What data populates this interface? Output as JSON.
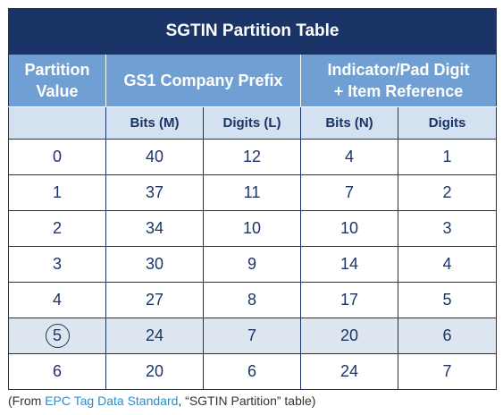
{
  "table": {
    "title": "SGTIN Partition Table",
    "group_headers": {
      "partition_line1": "Partition",
      "partition_line2": "Value",
      "company_prefix": "GS1 Company Prefix",
      "item_line1": "Indicator/Pad Digit",
      "item_line2": "+ Item Reference"
    },
    "sub_headers": [
      "",
      "Bits (M)",
      "Digits (L)",
      "Bits (N)",
      "Digits"
    ],
    "rows": [
      {
        "partition": "0",
        "bits_m": "40",
        "digits_l": "12",
        "bits_n": "4",
        "digits": "1"
      },
      {
        "partition": "1",
        "bits_m": "37",
        "digits_l": "11",
        "bits_n": "7",
        "digits": "2"
      },
      {
        "partition": "2",
        "bits_m": "34",
        "digits_l": "10",
        "bits_n": "10",
        "digits": "3"
      },
      {
        "partition": "3",
        "bits_m": "30",
        "digits_l": "9",
        "bits_n": "14",
        "digits": "4"
      },
      {
        "partition": "4",
        "bits_m": "27",
        "digits_l": "8",
        "bits_n": "17",
        "digits": "5"
      },
      {
        "partition": "5",
        "bits_m": "24",
        "digits_l": "7",
        "bits_n": "20",
        "digits": "6"
      },
      {
        "partition": "6",
        "bits_m": "20",
        "digits_l": "6",
        "bits_n": "24",
        "digits": "7"
      }
    ],
    "highlighted_row": 5
  },
  "caption": {
    "prefix": "(From ",
    "link_text": "EPC Tag Data Standard",
    "suffix": ", “SGTIN Partition” table)"
  },
  "colors": {
    "navy": "#1b3467",
    "header_blue": "#6f9fd3",
    "subheader_blue": "#d4e1f1",
    "highlight_row": "#dde5ef",
    "link": "#2a8fc4"
  }
}
